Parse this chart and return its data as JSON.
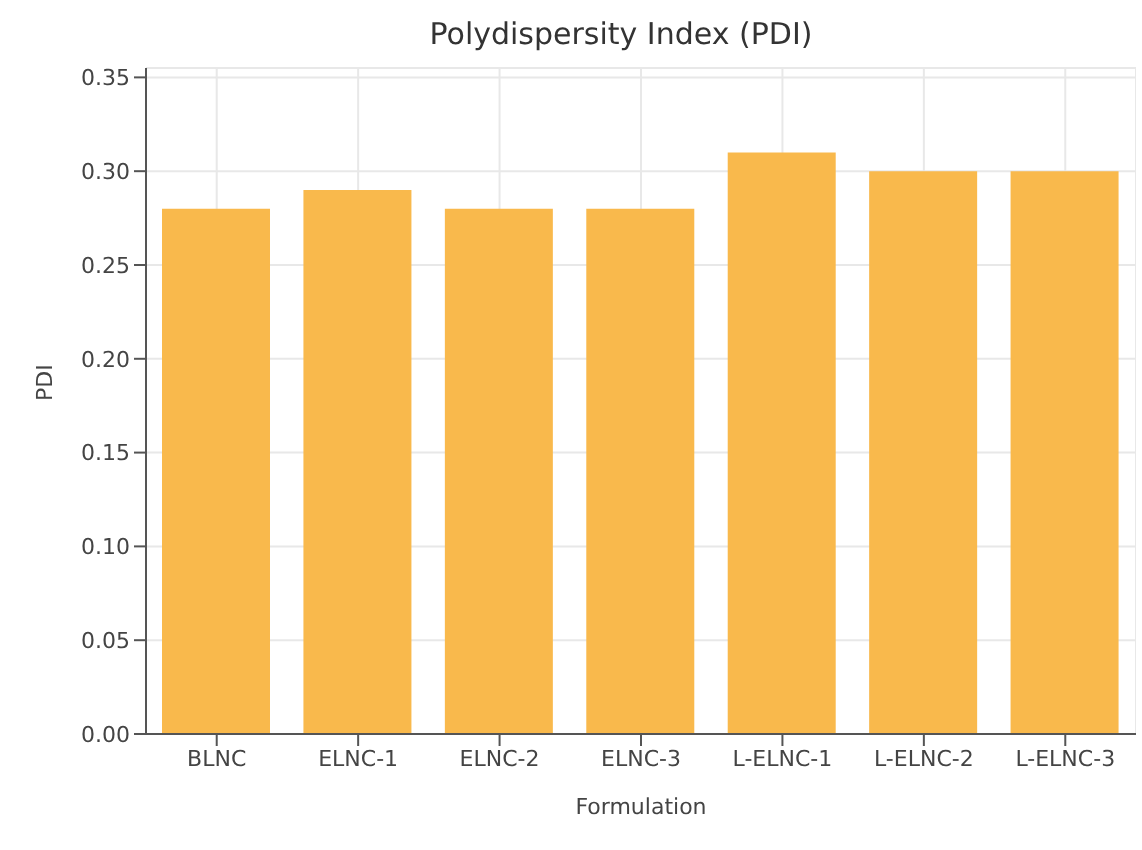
{
  "chart_data": {
    "type": "bar",
    "title": "Polydispersity Index (PDI)",
    "xlabel": "Formulation",
    "ylabel": "PDI",
    "categories": [
      "BLNC",
      "ELNC-1",
      "ELNC-2",
      "ELNC-3",
      "L-ELNC-1",
      "L-ELNC-2",
      "L-ELNC-3"
    ],
    "values": [
      0.28,
      0.29,
      0.28,
      0.28,
      0.31,
      0.3,
      0.3
    ],
    "color": "#f9b94c",
    "ylim": [
      0,
      0.355
    ],
    "yticks": [
      {
        "value": 0,
        "label": "0.00"
      },
      {
        "value": 0.05,
        "label": "0.05"
      },
      {
        "value": 0.1,
        "label": "0.10"
      },
      {
        "value": 0.15,
        "label": "0.15"
      },
      {
        "value": 0.2,
        "label": "0.20"
      },
      {
        "value": 0.25,
        "label": "0.25"
      },
      {
        "value": 0.3,
        "label": "0.30"
      },
      {
        "value": 0.35,
        "label": "0.35"
      }
    ],
    "grid": true
  }
}
